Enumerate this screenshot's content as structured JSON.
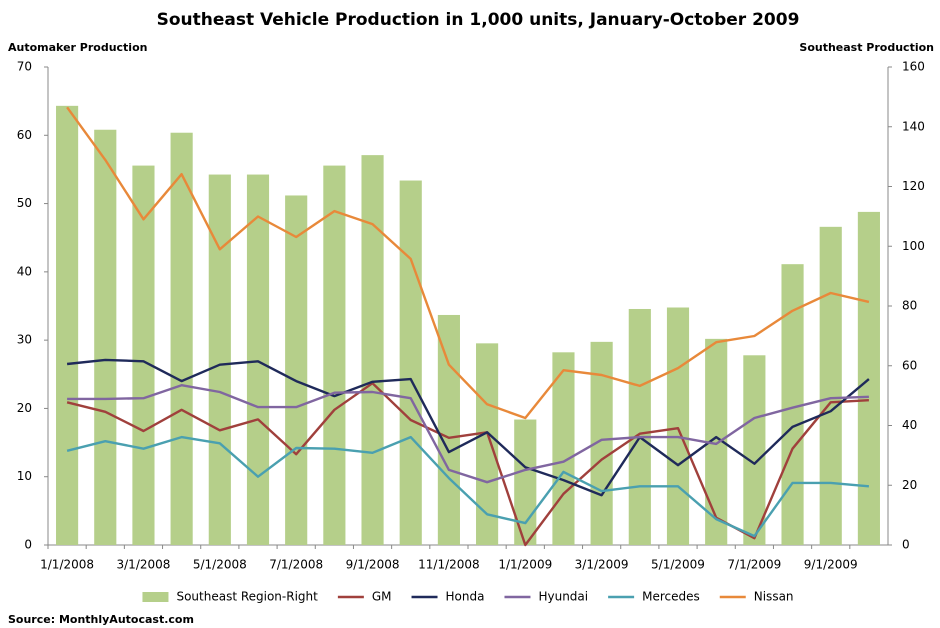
{
  "chart_data": {
    "type": "combo",
    "title": "Southeast Vehicle Production in 1,000 units, January-October 2009",
    "y_label": "Automaker Production",
    "y2_label": "Southeast Production",
    "source": "Source: MonthlyAutocast.com",
    "categories": [
      "1/1/2008",
      null,
      "3/1/2008",
      null,
      "5/1/2008",
      null,
      "7/1/2008",
      null,
      "9/1/2008",
      null,
      "11/1/2008",
      null,
      "1/1/2009",
      null,
      "3/1/2009",
      null,
      "5/1/2009",
      null,
      "7/1/2009",
      null,
      "9/1/2009",
      null
    ],
    "ylim": [
      0,
      70
    ],
    "yticks": [
      0,
      10,
      20,
      30,
      40,
      50,
      60,
      70
    ],
    "y2lim": [
      0,
      160
    ],
    "y2ticks": [
      0,
      20,
      40,
      60,
      80,
      100,
      120,
      140,
      160
    ],
    "grid": false,
    "legend": "bottom",
    "series": [
      {
        "name": "Southeast Region-Right",
        "type": "bar",
        "axis": "y2",
        "color": "#b5cf8a",
        "values": [
          147,
          139,
          127,
          138,
          124,
          124,
          117,
          127,
          130.5,
          122,
          77,
          67.5,
          42,
          64.5,
          68,
          79,
          79.5,
          69,
          63.5,
          94,
          106.5,
          111.5
        ]
      },
      {
        "name": "GM",
        "type": "line",
        "color": "#a0403c",
        "values": [
          20.9,
          19.5,
          16.7,
          19.8,
          16.8,
          18.4,
          13.3,
          19.8,
          23.7,
          18.3,
          15.7,
          16.5,
          0,
          7.5,
          12.5,
          16.3,
          17.1,
          4.0,
          1.0,
          14.1,
          20.9,
          21.2
        ]
      },
      {
        "name": "Honda",
        "type": "line",
        "color": "#1f2a5a",
        "values": [
          26.5,
          27.1,
          26.9,
          24.0,
          26.4,
          26.9,
          24.0,
          21.8,
          23.9,
          24.3,
          13.6,
          16.5,
          11.4,
          9.5,
          7.3,
          15.8,
          11.7,
          15.8,
          11.9,
          17.3,
          19.6,
          24.3
        ]
      },
      {
        "name": "Hyundai",
        "type": "line",
        "color": "#8066a0",
        "values": [
          21.4,
          21.4,
          21.5,
          23.4,
          22.4,
          20.2,
          20.2,
          22.3,
          22.4,
          21.5,
          11.0,
          9.2,
          11.0,
          12.2,
          15.4,
          15.8,
          15.8,
          14.8,
          18.6,
          20.1,
          21.5,
          21.7
        ]
      },
      {
        "name": "Mercedes",
        "type": "line",
        "color": "#4aa0b0",
        "values": [
          13.8,
          15.2,
          14.1,
          15.8,
          14.9,
          10.0,
          14.2,
          14.1,
          13.5,
          15.8,
          9.8,
          4.5,
          3.2,
          10.7,
          7.9,
          8.6,
          8.6,
          3.8,
          1.3,
          9.1,
          9.1,
          8.6
        ]
      },
      {
        "name": "Nissan",
        "type": "line",
        "color": "#e8893a",
        "values": [
          64.1,
          56.4,
          47.7,
          54.3,
          43.3,
          48.1,
          45.1,
          48.9,
          47.0,
          41.9,
          26.4,
          20.6,
          18.6,
          25.6,
          24.9,
          23.3,
          25.9,
          29.7,
          30.6,
          34.3,
          36.9,
          35.6
        ]
      }
    ]
  }
}
